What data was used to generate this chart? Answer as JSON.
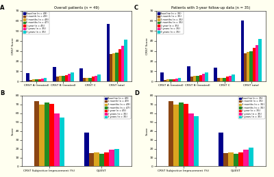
{
  "panel_A_title": "Overall patients (n = 49)",
  "panel_C_title": "Patients with 3-year follow-up data (n = 35)",
  "colors7": [
    "#00008B",
    "#8B4513",
    "#DAA520",
    "#228B22",
    "#FF0000",
    "#FF1493",
    "#00CED1"
  ],
  "legend_A": [
    "Baseline (n = 49)",
    "1 month (n = 49)",
    "3 months (n = 49)",
    "6 months (n = 47)",
    "1 year (n = 45)",
    "2 years (n = 35)",
    "3 years (n = 35)"
  ],
  "legend_C": [
    "Baseline (n = 35)",
    "1 month (n = 35)",
    "3 months (n = 35)",
    "6 months (n = 35)",
    "1 year (n = 35)",
    "2 years (n = 35)",
    "3 years (n = 35)"
  ],
  "legend_B": [
    "Baseline (n = 49)",
    "1 month (n = 49)",
    "3 months (n = 49)",
    "6 months (n = 47)",
    "1 year (n = 45)",
    "2 years (n = 35)",
    "3 years (n = 35)"
  ],
  "legend_D": [
    "Baseline (n = 35)",
    "1 month (n = 35)",
    "3 months (n = 35)",
    "6 months (n = 35)",
    "1 year (n = 35)",
    "2 years (n = 35)",
    "3 years (n = 35)"
  ],
  "AC_categories": [
    "CRST A (treated)",
    "CRST B (treated)",
    "CRST C",
    "CRST total"
  ],
  "AC_ylabel": "CRST Score",
  "AC_ylim": [
    0,
    70
  ],
  "AC_yticks": [
    0,
    10,
    20,
    30,
    40,
    50,
    60,
    70
  ],
  "A_data": [
    [
      8.5,
      1.5,
      1.8,
      1.8,
      2.2,
      3.0,
      3.5
    ],
    [
      14.0,
      5.0,
      5.5,
      5.5,
      6.5,
      7.5,
      9.0
    ],
    [
      13.0,
      3.5,
      3.8,
      3.8,
      4.5,
      5.5,
      7.0
    ],
    [
      57.0,
      27.0,
      28.0,
      28.5,
      32.0,
      35.0,
      41.0
    ]
  ],
  "C_data": [
    [
      9.0,
      1.5,
      1.8,
      1.8,
      2.2,
      3.0,
      3.5
    ],
    [
      15.0,
      5.0,
      5.5,
      5.5,
      6.5,
      7.5,
      9.0
    ],
    [
      13.5,
      3.5,
      3.8,
      3.8,
      4.5,
      5.5,
      7.0
    ],
    [
      60.0,
      28.0,
      29.0,
      30.0,
      33.0,
      36.0,
      42.0
    ]
  ],
  "BD_ylabel": "Score",
  "BD_ylim": [
    0,
    80
  ],
  "BD_yticks": [
    0,
    10,
    20,
    30,
    40,
    50,
    60,
    70,
    80
  ],
  "B_subj": [
    74.0,
    70.0,
    72.0,
    71.0,
    60.0,
    55.0
  ],
  "B_quest": [
    38.0,
    15.0,
    16.0,
    14.0,
    15.5,
    19.0,
    20.0
  ],
  "D_subj": [
    74.0,
    70.0,
    72.0,
    71.0,
    60.0,
    57.0
  ],
  "D_quest": [
    38.0,
    15.0,
    16.0,
    14.0,
    15.5,
    19.0,
    21.0
  ],
  "fig_bg": "#FFFFF0",
  "ax_bg": "#FFFFFF"
}
